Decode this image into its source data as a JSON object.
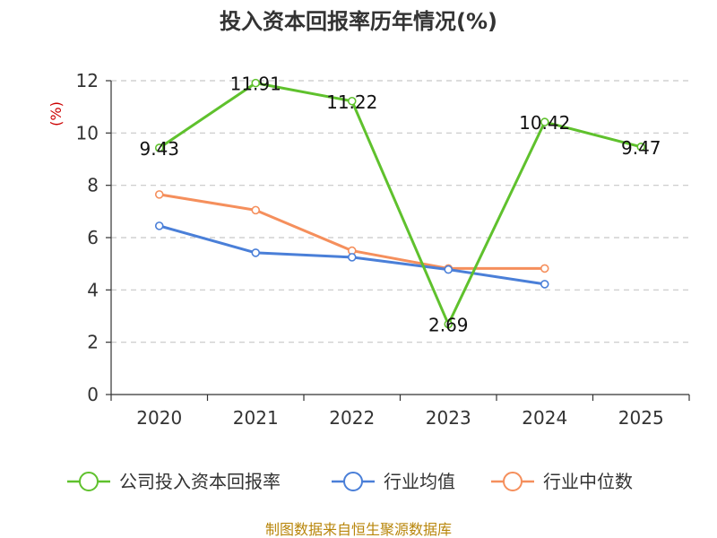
{
  "chart_data": {
    "type": "line",
    "title": "投入资本回报率历年情况(%)",
    "ylabel": "(%)",
    "xlabel": "",
    "categories": [
      "2020",
      "2021",
      "2022",
      "2023",
      "2024",
      "2025"
    ],
    "ylim": [
      0,
      12
    ],
    "yticks": [
      0,
      2,
      4,
      6,
      8,
      10,
      12
    ],
    "grid": "horizontal-dashed",
    "legend_position": "bottom",
    "series": [
      {
        "name": "公司投入资本回报率",
        "color": "#5fc12d",
        "values": [
          9.43,
          11.91,
          11.22,
          2.69,
          10.42,
          9.47
        ],
        "labels": [
          "9.43",
          "11.91",
          "11.22",
          "2.69",
          "10.42",
          "9.47"
        ]
      },
      {
        "name": "行业均值",
        "color": "#4a7fd8",
        "values": [
          6.45,
          5.42,
          5.25,
          4.78,
          4.22,
          null
        ]
      },
      {
        "name": "行业中位数",
        "color": "#f58f5c",
        "values": [
          7.65,
          7.05,
          5.5,
          4.82,
          4.82,
          null
        ]
      }
    ],
    "source": "制图数据来自恒生聚源数据库"
  }
}
